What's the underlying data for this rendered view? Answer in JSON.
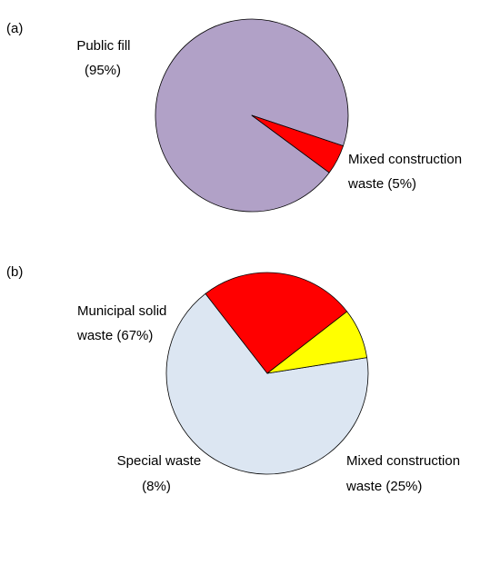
{
  "chart_data": [
    {
      "type": "pie",
      "panel_label": "(a)",
      "slices": [
        {
          "label_lines": [
            "Public fill",
            "(95%)"
          ],
          "value": 95,
          "color": "#b1a1c7"
        },
        {
          "label_lines": [
            "Mixed construction",
            "waste (5%)"
          ],
          "value": 5,
          "color": "#ff0000"
        }
      ],
      "legend": "none"
    },
    {
      "type": "pie",
      "panel_label": "(b)",
      "slices": [
        {
          "label_lines": [
            "Municipal solid",
            "waste (67%)"
          ],
          "value": 67,
          "color": "#dce6f2"
        },
        {
          "label_lines": [
            "Mixed construction",
            "waste (25%)"
          ],
          "value": 25,
          "color": "#ff0000"
        },
        {
          "label_lines": [
            "Special waste",
            "(8%)"
          ],
          "value": 8,
          "color": "#ffff00"
        }
      ],
      "legend": "none"
    }
  ]
}
